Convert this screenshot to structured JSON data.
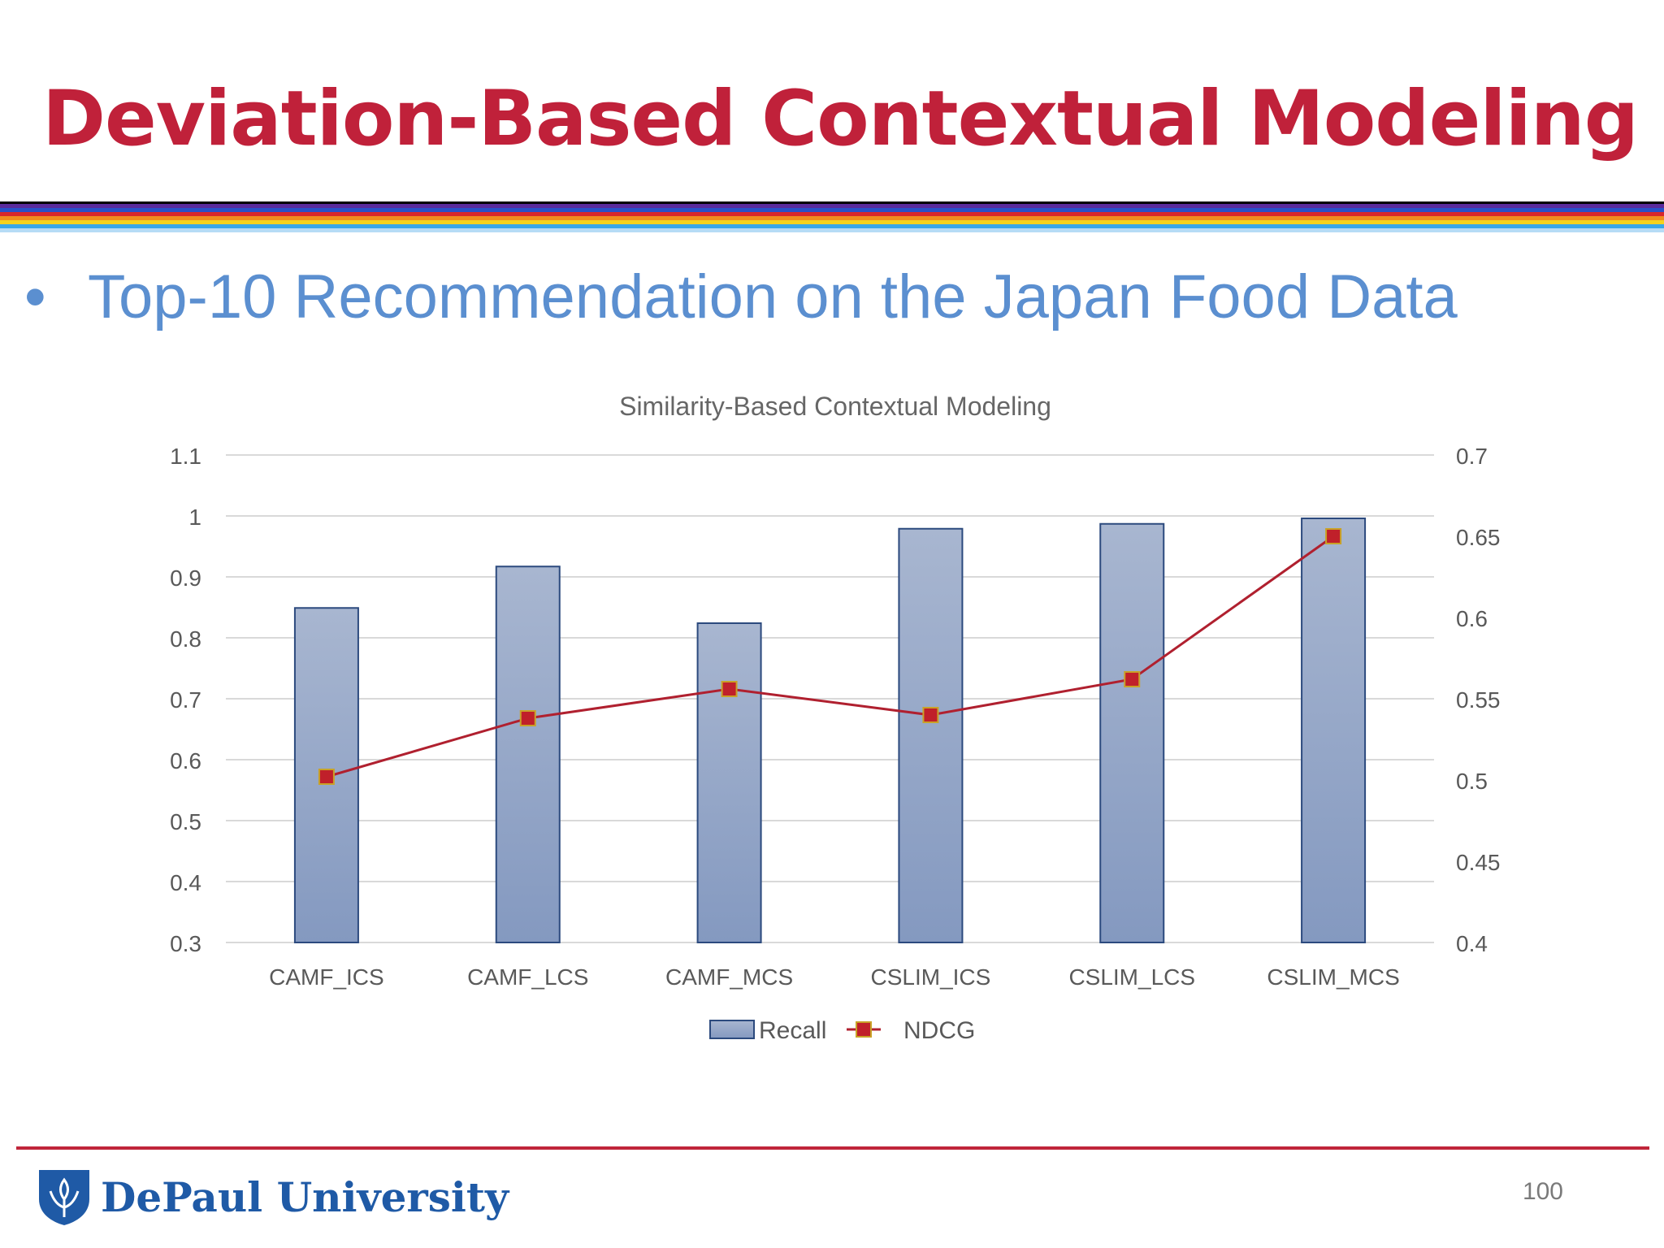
{
  "slide": {
    "title": "Deviation-Based Contextual Modeling",
    "bullet": "Top-10 Recommendation on the Japan Food Data",
    "university": "DePaul University",
    "page_number": "100"
  },
  "colors": {
    "title": "#c0213a",
    "bullet": "#5b8fd0",
    "bar_fill_top": "#a8b6d0",
    "bar_fill_bottom": "#8499c0",
    "bar_stroke": "#2c4a7e",
    "line": "#b0202f",
    "marker_fill": "#c0202a",
    "marker_stroke": "#c9a227"
  },
  "chart_data": {
    "type": "bar",
    "title": "Similarity-Based Contextual Modeling",
    "categories": [
      "CAMF_ICS",
      "CAMF_LCS",
      "CAMF_MCS",
      "CSLIM_ICS",
      "CSLIM_LCS",
      "CSLIM_MCS"
    ],
    "series": [
      {
        "name": "Recall",
        "type": "bar",
        "axis": "left",
        "values": [
          0.849,
          0.917,
          0.824,
          0.979,
          0.987,
          0.996
        ]
      },
      {
        "name": "NDCG",
        "type": "line",
        "axis": "right",
        "values": [
          0.502,
          0.538,
          0.556,
          0.54,
          0.562,
          0.65
        ]
      }
    ],
    "y_left": {
      "range": [
        0.3,
        1.1
      ],
      "ticks": [
        "0.3",
        "0.4",
        "0.5",
        "0.6",
        "0.7",
        "0.8",
        "0.9",
        "1",
        "1.1"
      ]
    },
    "y_right": {
      "range": [
        0.4,
        0.7
      ],
      "ticks": [
        "0.4",
        "0.45",
        "0.5",
        "0.55",
        "0.6",
        "0.65",
        "0.7"
      ]
    },
    "grid": true,
    "legend": "bottom"
  }
}
